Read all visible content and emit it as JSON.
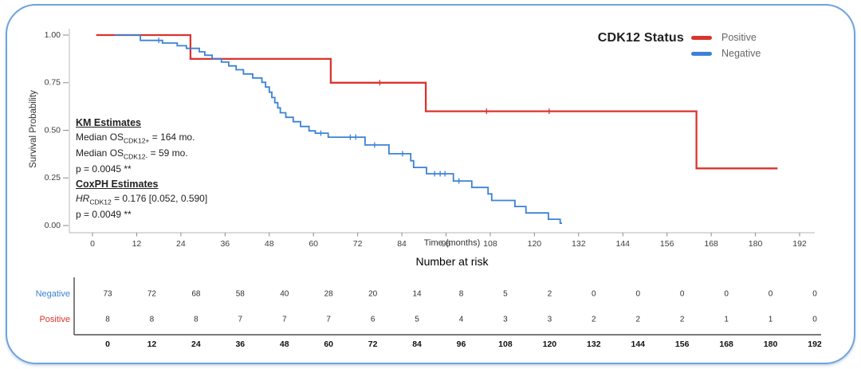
{
  "frame": {
    "border_color": "#6EA3DE"
  },
  "chart_data": {
    "type": "km_survival_step",
    "title": "CDK12 Status",
    "xlabel": "Time (months)",
    "ylabel": "Survival Probability",
    "xlim": [
      0,
      192
    ],
    "ylim": [
      0.0,
      1.0
    ],
    "grid": false,
    "legend_position": "top-right",
    "x_ticks": [
      0,
      12,
      24,
      36,
      48,
      60,
      72,
      84,
      96,
      108,
      120,
      132,
      144,
      156,
      168,
      180,
      192
    ],
    "y_ticks": [
      {
        "value": 0.0,
        "label": "0.00"
      },
      {
        "value": 0.25,
        "label": "0.25"
      },
      {
        "value": 0.5,
        "label": "0.50"
      },
      {
        "value": 0.75,
        "label": "0.75"
      },
      {
        "value": 1.0,
        "label": "1.00"
      }
    ],
    "series": [
      {
        "name": "Positive",
        "color": "#D9352E",
        "line_width": 2.3,
        "points": [
          [
            1,
            1.0
          ],
          [
            26.6,
            0.875
          ],
          [
            64.7,
            0.75
          ],
          [
            90.5,
            0.6
          ],
          [
            164,
            0.3
          ]
        ],
        "end_time": 186,
        "censor_times": [
          78,
          107,
          124
        ]
      },
      {
        "name": "Negative",
        "color": "#3B82D6",
        "line_width": 1.8,
        "points": [
          [
            6,
            1.0
          ],
          [
            13,
            0.972
          ],
          [
            19,
            0.958
          ],
          [
            23,
            0.944
          ],
          [
            25.5,
            0.93
          ],
          [
            29,
            0.912
          ],
          [
            30.5,
            0.894
          ],
          [
            32.5,
            0.876
          ],
          [
            35,
            0.858
          ],
          [
            37,
            0.838
          ],
          [
            39,
            0.818
          ],
          [
            41,
            0.796
          ],
          [
            43.5,
            0.775
          ],
          [
            46,
            0.752
          ],
          [
            47,
            0.727
          ],
          [
            48,
            0.7
          ],
          [
            48.7,
            0.672
          ],
          [
            49.5,
            0.645
          ],
          [
            50.3,
            0.618
          ],
          [
            51,
            0.592
          ],
          [
            52.5,
            0.568
          ],
          [
            54.5,
            0.545
          ],
          [
            56.5,
            0.52
          ],
          [
            58.8,
            0.497
          ],
          [
            60.5,
            0.485
          ],
          [
            64,
            0.464
          ],
          [
            74,
            0.423
          ],
          [
            80.5,
            0.377
          ],
          [
            86.4,
            0.34
          ],
          [
            87.2,
            0.305
          ],
          [
            90.7,
            0.272
          ],
          [
            98,
            0.234
          ],
          [
            103,
            0.2
          ],
          [
            107.4,
            0.166
          ],
          [
            108.4,
            0.132
          ],
          [
            114.7,
            0.1
          ],
          [
            117.7,
            0.066
          ],
          [
            123.8,
            0.033
          ],
          [
            127,
            0.012
          ]
        ],
        "end_time": 127.5,
        "censor_times": [
          18,
          62,
          70,
          71.5,
          76.6,
          84.2,
          92.9,
          94.4,
          95.7,
          99.5
        ]
      }
    ]
  },
  "annotations": {
    "km": {
      "heading": "KM Estimates",
      "median_pos": {
        "text": "Median OS",
        "sub": "CDK12+",
        "rest": " = 164 mo."
      },
      "median_neg": {
        "text": "Median OS",
        "sub": "CDK12-",
        "rest": " = 59 mo."
      },
      "p_value": "p = 0.0045 **"
    },
    "coxph": {
      "heading": "CoxPH Estimates",
      "hr": {
        "text": "HR",
        "sub": "CDK12",
        "rest": " = 0.176 [0.052, 0.590]"
      },
      "p_value": "p = 0.0049 **"
    }
  },
  "risk_table": {
    "title": "Number at risk",
    "time_ticks": [
      0,
      12,
      24,
      36,
      48,
      60,
      72,
      84,
      96,
      108,
      120,
      132,
      144,
      156,
      168,
      180,
      192
    ],
    "rows": [
      {
        "label": "Negative",
        "color": "#3B82D6",
        "values": [
          73,
          72,
          68,
          58,
          40,
          28,
          20,
          14,
          8,
          5,
          2,
          0,
          0,
          0,
          0,
          0,
          0
        ]
      },
      {
        "label": "Positive",
        "color": "#D9352E",
        "values": [
          8,
          8,
          8,
          7,
          7,
          7,
          6,
          5,
          4,
          3,
          3,
          2,
          2,
          2,
          1,
          1,
          0
        ]
      }
    ]
  }
}
